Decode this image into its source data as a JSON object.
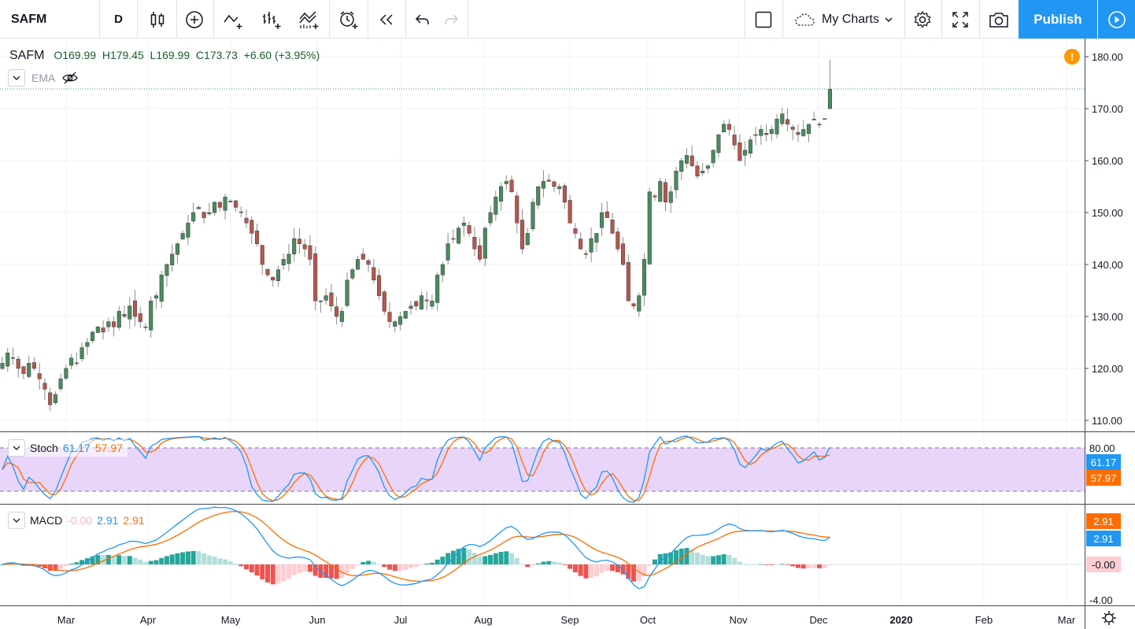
{
  "toolbar": {
    "symbol": "SAFM",
    "interval": "D",
    "layout_name": "My Charts",
    "publish_label": "Publish",
    "icons": [
      "candles-icon",
      "add-indicator-icon",
      "compare-icon",
      "bars-icon",
      "indicators-icon",
      "alert-icon",
      "replay-icon",
      "undo-icon",
      "redo-icon",
      "fullscreen-toggle-icon",
      "cloud-icon",
      "settings-icon",
      "fullscreen-icon",
      "camera-icon",
      "play-icon"
    ]
  },
  "legend": {
    "symbol": "SAFM",
    "ohlc": "O169.99  H179.45  L169.99  C173.73  +6.60 (+3.95%)",
    "ema_label": "EMA"
  },
  "colors": {
    "up": "#4a8a5e",
    "down": "#b4574f",
    "wick": "#8c8c8c",
    "stoch_k": "#2196f3",
    "stoch_d": "#ff6d00",
    "stoch_band": "#e1c7f7",
    "macd_line": "#2196f3",
    "signal_line": "#ff6d00",
    "hist_pos_strong": "#26a69a",
    "hist_pos_weak": "#b2dfdb",
    "hist_neg_strong": "#ef5350",
    "hist_neg_weak": "#ffcdd2",
    "accent": "#2196f3"
  },
  "price_axis": {
    "ticks": [
      "180.00",
      "170.00",
      "160.00",
      "150.00",
      "140.00",
      "130.00",
      "120.00",
      "110.00"
    ]
  },
  "stoch": {
    "label": "Stoch",
    "k": "61.17",
    "d": "57.97",
    "axis_tick": "80.00"
  },
  "macd": {
    "label": "MACD",
    "hist": "-0.00",
    "macd": "2.91",
    "signal": "2.91",
    "axis_tick": "-4.00"
  },
  "time_axis": {
    "labels": [
      "Mar",
      "Apr",
      "May",
      "Jun",
      "Jul",
      "Aug",
      "Sep",
      "Oct",
      "Nov",
      "Dec",
      "2020",
      "Feb",
      "Mar"
    ]
  },
  "chart_data": {
    "type": "candlestick",
    "symbol": "SAFM",
    "interval": "D",
    "ylim": [
      108,
      182
    ],
    "last": {
      "open": 169.99,
      "high": 179.45,
      "low": 169.99,
      "close": 173.73,
      "change": 6.6,
      "change_pct": 3.95
    },
    "closes_approx": [
      121,
      123,
      122,
      120,
      119,
      121,
      120,
      118,
      116,
      113,
      115,
      118,
      120,
      122,
      121,
      124,
      125,
      127,
      128,
      127,
      129,
      128,
      131,
      130,
      132,
      130,
      129,
      128,
      133,
      134,
      138,
      140,
      142,
      144,
      146,
      148,
      150,
      151,
      149,
      150,
      152,
      151,
      153,
      152,
      151,
      150,
      148,
      146,
      144,
      140,
      138,
      137,
      139,
      141,
      142,
      145,
      144,
      143,
      141,
      133,
      133,
      134,
      132,
      130,
      131,
      137,
      139,
      141,
      141,
      140,
      137,
      134,
      131,
      129,
      129,
      130,
      131,
      132,
      132,
      134,
      133,
      133,
      138,
      140,
      144,
      145,
      147,
      148,
      146,
      143,
      141,
      147,
      150,
      153,
      155,
      156,
      154,
      148,
      143,
      146,
      152,
      155,
      156,
      156,
      155,
      155,
      152,
      148,
      146,
      143,
      142,
      145,
      146,
      150,
      149,
      146,
      143,
      140,
      133,
      132,
      134,
      141,
      154,
      153,
      156,
      152,
      154,
      158,
      160,
      161,
      159,
      157,
      158,
      159,
      162,
      165,
      167,
      166,
      163,
      160,
      162,
      164,
      165,
      166,
      165,
      166,
      168,
      169,
      167,
      166,
      165,
      166,
      167,
      168,
      167,
      168,
      173.73
    ]
  }
}
